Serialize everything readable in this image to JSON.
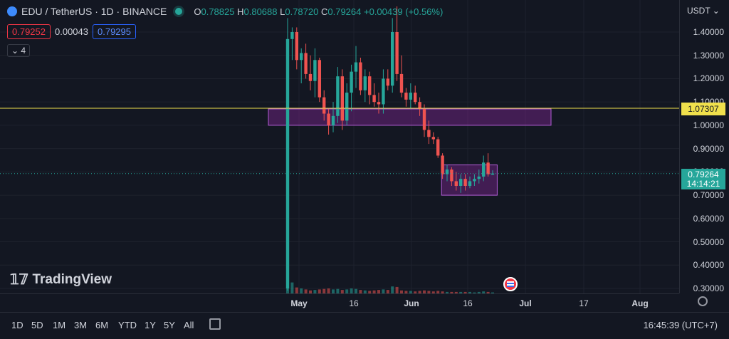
{
  "header": {
    "symbol": "EDU / TetherUS · 1D · BINANCE",
    "o_label": "O",
    "o": "0.78825",
    "h_label": "H",
    "h": "0.80688",
    "l_label": "L",
    "l": "0.78720",
    "c_label": "C",
    "c": "0.79264",
    "change": "+0.00439 (+0.56%)",
    "bid": "0.79252",
    "spread": "0.00043",
    "ask": "0.79295",
    "indicators_count": "4"
  },
  "price_axis": {
    "currency": "USDT",
    "ticks": [
      "1.40000",
      "1.30000",
      "1.20000",
      "1.10000",
      "1.00000",
      "0.90000",
      "0.80000",
      "0.70000",
      "0.60000",
      "0.50000",
      "0.40000",
      "0.30000"
    ],
    "hline_label": "1.07307",
    "last_price": "0.79264",
    "countdown": "14:14:21"
  },
  "time_axis": {
    "labels": [
      "May",
      "16",
      "Jun",
      "16",
      "Jul",
      "17",
      "Aug"
    ]
  },
  "bottom": {
    "timeframes": [
      "1D",
      "5D",
      "1M",
      "3M",
      "6M",
      "YTD",
      "1Y",
      "5Y",
      "All"
    ],
    "clock": "16:45:39 (UTC+7)"
  },
  "watermark": "TradingView",
  "colors": {
    "up": "#26a69a",
    "down": "#ef5350",
    "hline": "#f0e04c",
    "zone": "#9c27b0"
  },
  "chart_data": {
    "type": "candlestick",
    "ylim": [
      0.28,
      1.52
    ],
    "x_axis": "daily, late Apr – Aug",
    "horizontal_lines": [
      1.07307
    ],
    "last_price": 0.79264,
    "candles": [
      {
        "o": 0.3,
        "h": 1.46,
        "l": 0.29,
        "c": 1.37
      },
      {
        "o": 1.37,
        "h": 1.42,
        "l": 1.28,
        "c": 1.4
      },
      {
        "o": 1.4,
        "h": 1.42,
        "l": 1.24,
        "c": 1.28
      },
      {
        "o": 1.28,
        "h": 1.33,
        "l": 1.18,
        "c": 1.31
      },
      {
        "o": 1.31,
        "h": 1.35,
        "l": 1.2,
        "c": 1.22
      },
      {
        "o": 1.22,
        "h": 1.3,
        "l": 1.15,
        "c": 1.19
      },
      {
        "o": 1.19,
        "h": 1.33,
        "l": 1.12,
        "c": 1.28
      },
      {
        "o": 1.28,
        "h": 1.29,
        "l": 1.1,
        "c": 1.12
      },
      {
        "o": 1.12,
        "h": 1.15,
        "l": 1.02,
        "c": 1.05
      },
      {
        "o": 1.05,
        "h": 1.07,
        "l": 0.96,
        "c": 1.0
      },
      {
        "o": 1.0,
        "h": 1.1,
        "l": 0.97,
        "c": 1.04
      },
      {
        "o": 1.04,
        "h": 1.25,
        "l": 1.01,
        "c": 1.21
      },
      {
        "o": 1.21,
        "h": 1.24,
        "l": 0.98,
        "c": 1.02
      },
      {
        "o": 1.02,
        "h": 1.18,
        "l": 1.0,
        "c": 1.14
      },
      {
        "o": 1.14,
        "h": 1.26,
        "l": 1.06,
        "c": 1.23
      },
      {
        "o": 1.23,
        "h": 1.34,
        "l": 1.16,
        "c": 1.27
      },
      {
        "o": 1.27,
        "h": 1.29,
        "l": 1.13,
        "c": 1.15
      },
      {
        "o": 1.15,
        "h": 1.24,
        "l": 1.1,
        "c": 1.21
      },
      {
        "o": 1.21,
        "h": 1.23,
        "l": 1.09,
        "c": 1.13
      },
      {
        "o": 1.13,
        "h": 1.18,
        "l": 1.08,
        "c": 1.1
      },
      {
        "o": 1.1,
        "h": 1.14,
        "l": 1.05,
        "c": 1.09
      },
      {
        "o": 1.09,
        "h": 1.24,
        "l": 1.05,
        "c": 1.2
      },
      {
        "o": 1.2,
        "h": 1.24,
        "l": 1.15,
        "c": 1.17
      },
      {
        "o": 1.17,
        "h": 1.46,
        "l": 1.14,
        "c": 1.4
      },
      {
        "o": 1.4,
        "h": 1.51,
        "l": 1.19,
        "c": 1.22
      },
      {
        "o": 1.22,
        "h": 1.3,
        "l": 1.12,
        "c": 1.14
      },
      {
        "o": 1.14,
        "h": 1.16,
        "l": 1.08,
        "c": 1.11
      },
      {
        "o": 1.11,
        "h": 1.18,
        "l": 1.07,
        "c": 1.14
      },
      {
        "o": 1.14,
        "h": 1.17,
        "l": 1.09,
        "c": 1.1
      },
      {
        "o": 1.1,
        "h": 1.12,
        "l": 1.04,
        "c": 1.07
      },
      {
        "o": 1.07,
        "h": 1.09,
        "l": 0.95,
        "c": 0.98
      },
      {
        "o": 0.98,
        "h": 1.02,
        "l": 0.92,
        "c": 0.95
      },
      {
        "o": 0.95,
        "h": 0.97,
        "l": 0.92,
        "c": 0.94
      },
      {
        "o": 0.94,
        "h": 0.95,
        "l": 0.86,
        "c": 0.87
      },
      {
        "o": 0.87,
        "h": 0.88,
        "l": 0.77,
        "c": 0.79
      },
      {
        "o": 0.79,
        "h": 0.83,
        "l": 0.76,
        "c": 0.81
      },
      {
        "o": 0.81,
        "h": 0.82,
        "l": 0.74,
        "c": 0.76
      },
      {
        "o": 0.76,
        "h": 0.8,
        "l": 0.72,
        "c": 0.74
      },
      {
        "o": 0.74,
        "h": 0.79,
        "l": 0.71,
        "c": 0.77
      },
      {
        "o": 0.77,
        "h": 0.79,
        "l": 0.72,
        "c": 0.74
      },
      {
        "o": 0.74,
        "h": 0.78,
        "l": 0.73,
        "c": 0.76
      },
      {
        "o": 0.76,
        "h": 0.79,
        "l": 0.74,
        "c": 0.77
      },
      {
        "o": 0.77,
        "h": 0.81,
        "l": 0.75,
        "c": 0.78
      },
      {
        "o": 0.78,
        "h": 0.87,
        "l": 0.76,
        "c": 0.84
      },
      {
        "o": 0.84,
        "h": 0.88,
        "l": 0.78,
        "c": 0.79
      },
      {
        "o": 0.788,
        "h": 0.807,
        "l": 0.787,
        "c": 0.793
      }
    ],
    "volume_rel": [
      1.0,
      0.22,
      0.12,
      0.1,
      0.08,
      0.06,
      0.07,
      0.08,
      0.09,
      0.1,
      0.08,
      0.09,
      0.07,
      0.08,
      0.1,
      0.09,
      0.07,
      0.06,
      0.05,
      0.06,
      0.07,
      0.08,
      0.07,
      0.14,
      0.13,
      0.06,
      0.05,
      0.05,
      0.04,
      0.05,
      0.06,
      0.05,
      0.04,
      0.05,
      0.04,
      0.03,
      0.03,
      0.03,
      0.03,
      0.03,
      0.03,
      0.02,
      0.03,
      0.04,
      0.03,
      0.02
    ],
    "zones": [
      {
        "x_start": 7,
        "x_end": 55,
        "price_top": 1.07,
        "price_bottom": 1.0
      },
      {
        "x_start": 33,
        "x_end": 46,
        "price_top": 0.83,
        "price_bottom": 0.7
      }
    ]
  }
}
